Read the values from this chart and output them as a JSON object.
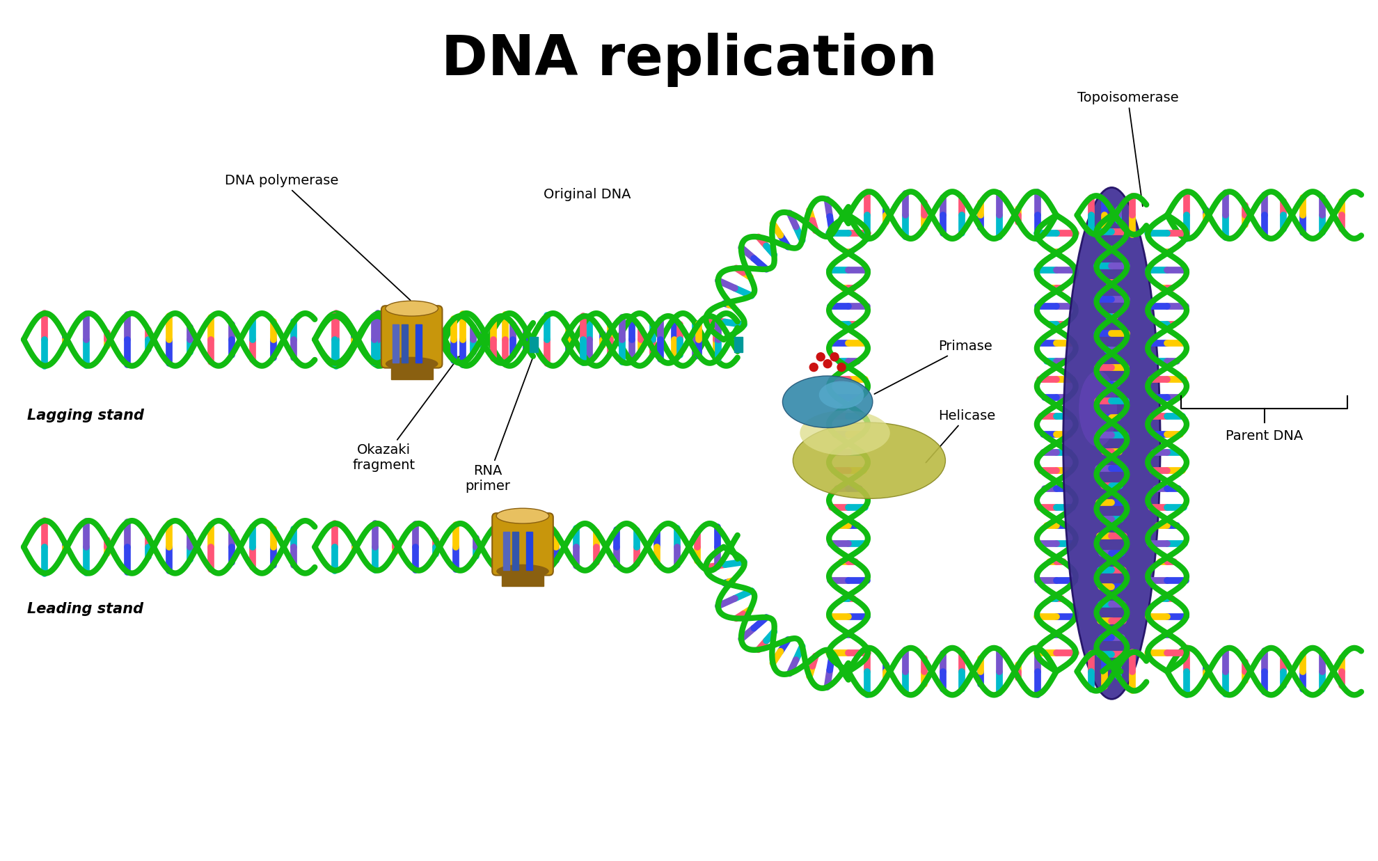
{
  "title": "DNA replication",
  "title_fontsize": 58,
  "title_fontweight": "bold",
  "bg_color": "#ffffff",
  "labels": {
    "dna_polymerase": "DNA polymerase",
    "original_dna": "Original DNA",
    "okazaki": "Okazaki\nfragment",
    "rna_primer": "RNA\nprimer",
    "primase": "Primase",
    "helicase": "Helicase",
    "topoisomerase": "Topoisomerase",
    "parent_dna": "Parent DNA",
    "lagging_stand": "Lagging stand",
    "leading_stand": "Leading stand"
  },
  "colors": {
    "dna_backbone": "#11bb11",
    "dna_backbone_dark": "#007700",
    "base_pink": "#ff5577",
    "base_blue": "#3344ee",
    "base_cyan": "#00bbcc",
    "base_yellow": "#ffcc00",
    "base_purple": "#7755cc",
    "polymerase": "#c8960c",
    "polymerase_dark": "#8a6010",
    "polymerase_light": "#e8c060",
    "topoisomerase": "#443399",
    "topoisomerase_hi": "#6644bb",
    "helicase": "#bbbb44",
    "helicase_hi": "#dddd88",
    "primase": "#3388aa",
    "primase_hi": "#55aacc",
    "red_dots": "#cc1111",
    "black": "#000000",
    "white": "#ffffff"
  }
}
